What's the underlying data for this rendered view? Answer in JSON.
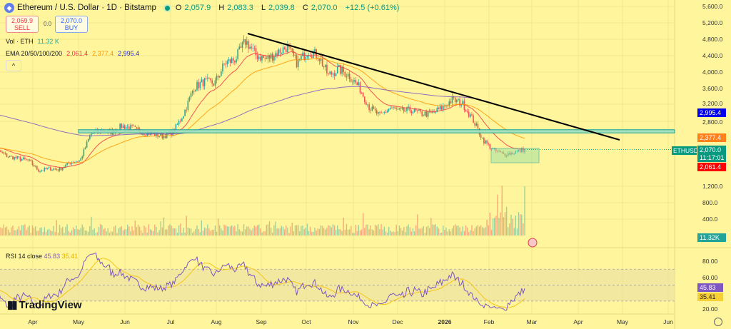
{
  "header": {
    "symbol_title": "Ethereum / U.S. Dollar · 1D · Bitstamp",
    "ohlc": [
      {
        "k": "O",
        "v": "2,057.9"
      },
      {
        "k": "H",
        "v": "2,083.3"
      },
      {
        "k": "L",
        "v": "2,039.8"
      },
      {
        "k": "C",
        "v": "2,070.0"
      }
    ],
    "change": "+12.5 (+0.61%)",
    "sell_price": "2,069.9",
    "sell_label": "SELL",
    "spread": "0.0",
    "buy_price": "2,070.0",
    "buy_label": "BUY",
    "collapse": "^"
  },
  "indicators": {
    "vol_label": "Vol · ETH",
    "vol_value": "11.32 K",
    "ema_label": "EMA 20/50/100/200",
    "ema20": "2,061.4",
    "ema50": "2,377.4",
    "ema200": "2,995.4",
    "rsi_label": "RSI 14 close",
    "rsi_value": "45.83",
    "rsi_ma": "35.41"
  },
  "axis": {
    "price_ticks": [
      "5,600.0",
      "5,200.0",
      "4,800.0",
      "4,400.0",
      "4,000.0",
      "3,600.0",
      "3,200.0",
      "2,800.0",
      "1,200.0",
      "800.0",
      "400.0"
    ],
    "rsi_ticks": [
      "80.00",
      "60.00",
      "20.00"
    ],
    "time_ticks": [
      "Apr",
      "May",
      "Jun",
      "Jul",
      "Aug",
      "Sep",
      "Oct",
      "Nov",
      "Dec",
      "2026",
      "Feb",
      "Mar",
      "Apr",
      "May",
      "Jun"
    ]
  },
  "tags": {
    "ema200": "2,995.4",
    "ema50": "2,377.4",
    "symbol": "ETHUSD",
    "last": "2,070.0",
    "countdown": "11:17:01",
    "ema20": "2,061.4",
    "volume": "11.32K",
    "rsi": "45.83",
    "rsi_ma": "35.41"
  },
  "logo": "TradingView",
  "colors": {
    "background": "#fff59d",
    "up": "#26a69a",
    "down": "#ef5350",
    "ema20": "#f23645",
    "ema50": "#ff9800",
    "ema200": "#7e57c2",
    "rsi": "#7e57c2",
    "rsi_ma": "#f5c518",
    "trendline": "#000000",
    "zone": "#26a69a"
  },
  "chart_data": {
    "type": "candlestick",
    "title": "Ethereum / U.S. Dollar · 1D · Bitstamp",
    "x_range": [
      "2025-03-01",
      "2026-06-15"
    ],
    "y_range": [
      1200,
      5600
    ],
    "approx_weekly_closes": [
      2200,
      2050,
      1900,
      1850,
      1800,
      1550,
      1600,
      1580,
      1750,
      1800,
      2450,
      2550,
      2500,
      2650,
      2600,
      2500,
      2450,
      2400,
      2500,
      2950,
      3600,
      3750,
      3700,
      4200,
      4300,
      4750,
      4400,
      4300,
      4450,
      4600,
      4200,
      4500,
      4400,
      3900,
      4050,
      3900,
      3600,
      3100,
      2900,
      3100,
      3000,
      3050,
      2950,
      2950,
      3100,
      3300,
      3200,
      2800,
      2300,
      2050,
      1950,
      2000,
      2070
    ],
    "last_close": 2070.0,
    "ema": {
      "20": 2061.4,
      "50": 2377.4,
      "200": 2995.4
    },
    "rsi": {
      "period": 14,
      "value": 45.83,
      "ma": 35.41,
      "bands": [
        30,
        70
      ]
    },
    "annotations": {
      "descending_trendline": {
        "from": [
          "2025-08-22",
          4900
        ],
        "to": [
          "2026-05-01",
          2070
        ]
      },
      "horizontal_zone": [
        2480,
        2560
      ],
      "consolidation_box": {
        "from": "2026-02-05",
        "to": "2026-03-05",
        "price": [
          1850,
          2260
        ]
      }
    }
  }
}
